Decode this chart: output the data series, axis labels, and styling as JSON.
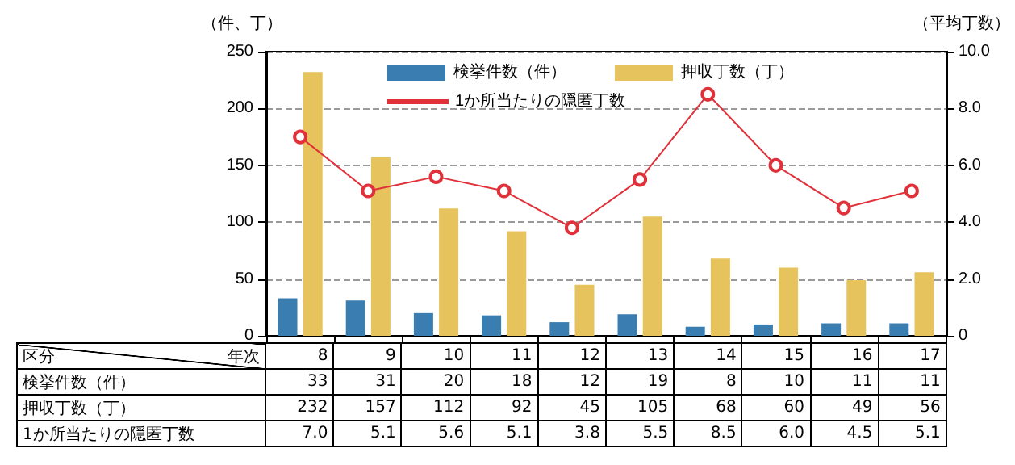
{
  "chart_data": {
    "type": "bar",
    "categories": [
      "8",
      "9",
      "10",
      "11",
      "12",
      "13",
      "14",
      "15",
      "16",
      "17"
    ],
    "series": [
      {
        "name": "検挙件数（件）",
        "color": "#3a7db0",
        "values": [
          33,
          31,
          20,
          18,
          12,
          19,
          8,
          10,
          11,
          11
        ]
      },
      {
        "name": "押収丁数（丁）",
        "color": "#e6c35c",
        "values": [
          232,
          157,
          112,
          92,
          45,
          105,
          68,
          60,
          49,
          56
        ]
      },
      {
        "name": "1か所当たりの隠匿丁数",
        "type": "line",
        "axis": "y2",
        "color": "#e0303a",
        "values": [
          7.0,
          5.1,
          5.6,
          5.1,
          3.8,
          5.5,
          8.5,
          6.0,
          4.5,
          5.1
        ],
        "value_labels": [
          "7.0",
          "5.1",
          "5.6",
          "5.1",
          "3.8",
          "5.5",
          "8.5",
          "6.0",
          "4.5",
          "5.1"
        ]
      }
    ],
    "ylabel": "（件、丁）",
    "y2label": "（平均丁数）",
    "ylim": [
      0,
      250
    ],
    "yticks": [
      0,
      50,
      100,
      150,
      200,
      250
    ],
    "y2lim": [
      0,
      10
    ],
    "y2ticks": [
      0,
      {
        "value": 2,
        "label": "2.0"
      },
      {
        "value": 4,
        "label": "4.0"
      },
      {
        "value": 6,
        "label": "6.0"
      },
      {
        "value": 8,
        "label": "8.0"
      },
      {
        "value": 10,
        "label": "10.0"
      }
    ],
    "grid": "y",
    "legend": "top",
    "marker": "circle",
    "line_style": "solid",
    "data_labels": true,
    "annotations": [
      "区分",
      "年次"
    ]
  }
}
